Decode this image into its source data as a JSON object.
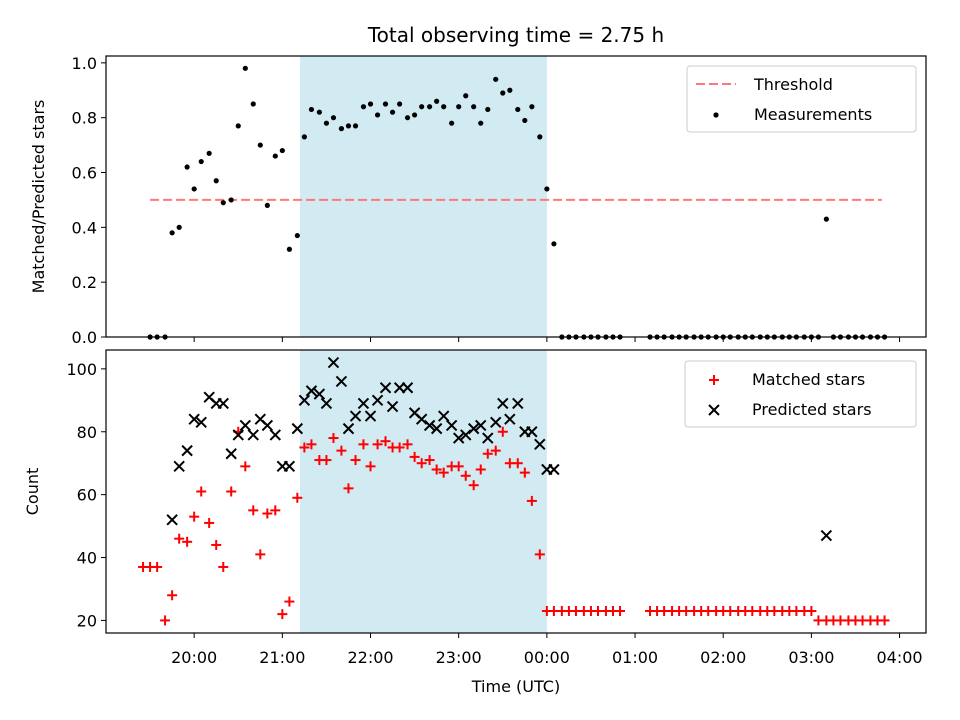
{
  "chart_data": [
    {
      "type": "scatter",
      "title": "Total observing time = 2.75 h",
      "ylabel": "Matched/Predicted stars",
      "ylim": [
        0,
        1.0
      ],
      "yticks": [
        "0.0",
        "0.2",
        "0.4",
        "0.6",
        "0.8",
        "1.0"
      ],
      "threshold": {
        "name": "Threshold",
        "value": 0.5,
        "x_range": [
          19.5,
          27.8
        ],
        "color": "#ff7777"
      },
      "shaded_span": {
        "start": 21.2,
        "end": 24.0,
        "color": "#add8e6"
      },
      "legend_position": "upper right",
      "series": [
        {
          "name": "Measurements",
          "color": "#000000",
          "marker": "dot",
          "x": [
            19.5,
            19.58,
            19.67,
            19.75,
            19.83,
            19.92,
            20.0,
            20.08,
            20.17,
            20.25,
            20.33,
            20.42,
            20.5,
            20.58,
            20.67,
            20.75,
            20.83,
            20.92,
            21.0,
            21.08,
            21.17,
            21.25,
            21.33,
            21.42,
            21.5,
            21.58,
            21.67,
            21.75,
            21.83,
            21.92,
            22.0,
            22.08,
            22.17,
            22.25,
            22.33,
            22.42,
            22.5,
            22.58,
            22.67,
            22.75,
            22.83,
            22.92,
            23.0,
            23.08,
            23.17,
            23.25,
            23.33,
            23.42,
            23.5,
            23.58,
            23.67,
            23.75,
            23.83,
            23.92,
            24.0,
            24.08,
            24.17,
            24.25,
            24.33,
            24.42,
            24.5,
            24.58,
            24.67,
            24.75,
            24.83,
            25.17,
            25.25,
            25.33,
            25.42,
            25.5,
            25.58,
            25.67,
            25.75,
            25.83,
            25.92,
            26.0,
            26.08,
            26.17,
            26.25,
            26.33,
            26.42,
            26.5,
            26.58,
            26.67,
            26.75,
            26.83,
            26.92,
            27.0,
            27.08,
            27.17,
            27.25,
            27.33,
            27.42,
            27.5,
            27.58,
            27.67,
            27.75,
            27.83
          ],
          "y": [
            0.0,
            0.0,
            0.0,
            0.38,
            0.4,
            0.62,
            0.54,
            0.64,
            0.67,
            0.57,
            0.49,
            0.5,
            0.77,
            0.98,
            0.85,
            0.7,
            0.48,
            0.66,
            0.68,
            0.32,
            0.37,
            0.73,
            0.83,
            0.82,
            0.78,
            0.8,
            0.76,
            0.77,
            0.77,
            0.84,
            0.85,
            0.81,
            0.85,
            0.82,
            0.85,
            0.8,
            0.81,
            0.84,
            0.84,
            0.86,
            0.84,
            0.78,
            0.84,
            0.88,
            0.84,
            0.78,
            0.83,
            0.94,
            0.89,
            0.9,
            0.83,
            0.79,
            0.84,
            0.73,
            0.54,
            0.34,
            0.0,
            0.0,
            0.0,
            0.0,
            0.0,
            0.0,
            0.0,
            0.0,
            0.0,
            0.0,
            0.0,
            0.0,
            0.0,
            0.0,
            0.0,
            0.0,
            0.0,
            0.0,
            0.0,
            0.0,
            0.0,
            0.0,
            0.0,
            0.0,
            0.0,
            0.0,
            0.0,
            0.0,
            0.0,
            0.0,
            0.0,
            0.0,
            0.0,
            0.43,
            0.0,
            0.0,
            0.0,
            0.0,
            0.0,
            0.0,
            0.0,
            0.0
          ]
        }
      ]
    },
    {
      "type": "scatter",
      "xlabel": "Time (UTC)",
      "ylabel": "Count",
      "ylim": [
        16,
        106
      ],
      "yticks": [
        "20",
        "40",
        "60",
        "80",
        "100"
      ],
      "xlim": [
        19.0,
        28.3
      ],
      "xticks": [
        "20:00",
        "21:00",
        "22:00",
        "23:00",
        "00:00",
        "01:00",
        "02:00",
        "03:00",
        "04:00"
      ],
      "xtick_values": [
        20,
        21,
        22,
        23,
        24,
        25,
        26,
        27,
        28
      ],
      "shaded_span": {
        "start": 21.2,
        "end": 24.0,
        "color": "#add8e6"
      },
      "legend_position": "upper right",
      "series": [
        {
          "name": "Matched stars",
          "color": "#ff0000",
          "marker": "plus",
          "x": [
            19.42,
            19.5,
            19.58,
            19.67,
            19.75,
            19.83,
            19.92,
            20.0,
            20.08,
            20.17,
            20.25,
            20.33,
            20.42,
            20.5,
            20.58,
            20.67,
            20.75,
            20.83,
            20.92,
            21.0,
            21.08,
            21.17,
            21.25,
            21.33,
            21.42,
            21.5,
            21.58,
            21.67,
            21.75,
            21.83,
            21.92,
            22.0,
            22.08,
            22.17,
            22.25,
            22.33,
            22.42,
            22.5,
            22.58,
            22.67,
            22.75,
            22.83,
            22.92,
            23.0,
            23.08,
            23.17,
            23.25,
            23.33,
            23.42,
            23.5,
            23.58,
            23.67,
            23.75,
            23.83,
            23.92,
            24.0,
            24.08,
            24.17,
            24.25,
            24.33,
            24.42,
            24.5,
            24.58,
            24.67,
            24.75,
            24.83,
            25.17,
            25.25,
            25.33,
            25.42,
            25.5,
            25.58,
            25.67,
            25.75,
            25.83,
            25.92,
            26.0,
            26.08,
            26.17,
            26.25,
            26.33,
            26.42,
            26.5,
            26.58,
            26.67,
            26.75,
            26.83,
            26.92,
            27.0,
            27.08,
            27.17,
            27.25,
            27.33,
            27.42,
            27.5,
            27.58,
            27.67,
            27.75,
            27.83
          ],
          "y": [
            37,
            37,
            37,
            20,
            28,
            46,
            45,
            53,
            61,
            51,
            44,
            37,
            61,
            80,
            69,
            55,
            41,
            54,
            55,
            22,
            26,
            59,
            75,
            76,
            71,
            71,
            78,
            74,
            62,
            71,
            76,
            69,
            76,
            77,
            75,
            75,
            76,
            72,
            70,
            71,
            68,
            67,
            69,
            69,
            66,
            63,
            68,
            73,
            74,
            80,
            70,
            70,
            67,
            58,
            41,
            23,
            23,
            23,
            23,
            23,
            23,
            23,
            23,
            23,
            23,
            23,
            23,
            23,
            23,
            23,
            23,
            23,
            23,
            23,
            23,
            23,
            23,
            23,
            23,
            23,
            23,
            23,
            23,
            23,
            23,
            23,
            23,
            23,
            23,
            20,
            20,
            20,
            20,
            20,
            20,
            20,
            20,
            20,
            20
          ]
        },
        {
          "name": "Predicted stars",
          "color": "#000000",
          "marker": "x",
          "x": [
            19.75,
            19.83,
            19.92,
            20.0,
            20.08,
            20.17,
            20.25,
            20.33,
            20.42,
            20.5,
            20.58,
            20.67,
            20.75,
            20.83,
            20.92,
            21.0,
            21.08,
            21.17,
            21.25,
            21.33,
            21.42,
            21.5,
            21.58,
            21.67,
            21.75,
            21.83,
            21.92,
            22.0,
            22.08,
            22.17,
            22.25,
            22.33,
            22.42,
            22.5,
            22.58,
            22.67,
            22.75,
            22.83,
            22.92,
            23.0,
            23.08,
            23.17,
            23.25,
            23.33,
            23.42,
            23.5,
            23.58,
            23.67,
            23.75,
            23.83,
            23.92,
            24.0,
            24.08,
            27.17
          ],
          "y": [
            52,
            69,
            74,
            84,
            83,
            91,
            89,
            89,
            73,
            79,
            82,
            79,
            84,
            82,
            79,
            69,
            69,
            81,
            90,
            93,
            92,
            89,
            102,
            96,
            81,
            85,
            89,
            85,
            90,
            94,
            88,
            94,
            94,
            86,
            84,
            82,
            81,
            85,
            82,
            78,
            79,
            81,
            82,
            78,
            83,
            89,
            84,
            89,
            80,
            80,
            76,
            68,
            68,
            47
          ]
        }
      ]
    }
  ]
}
